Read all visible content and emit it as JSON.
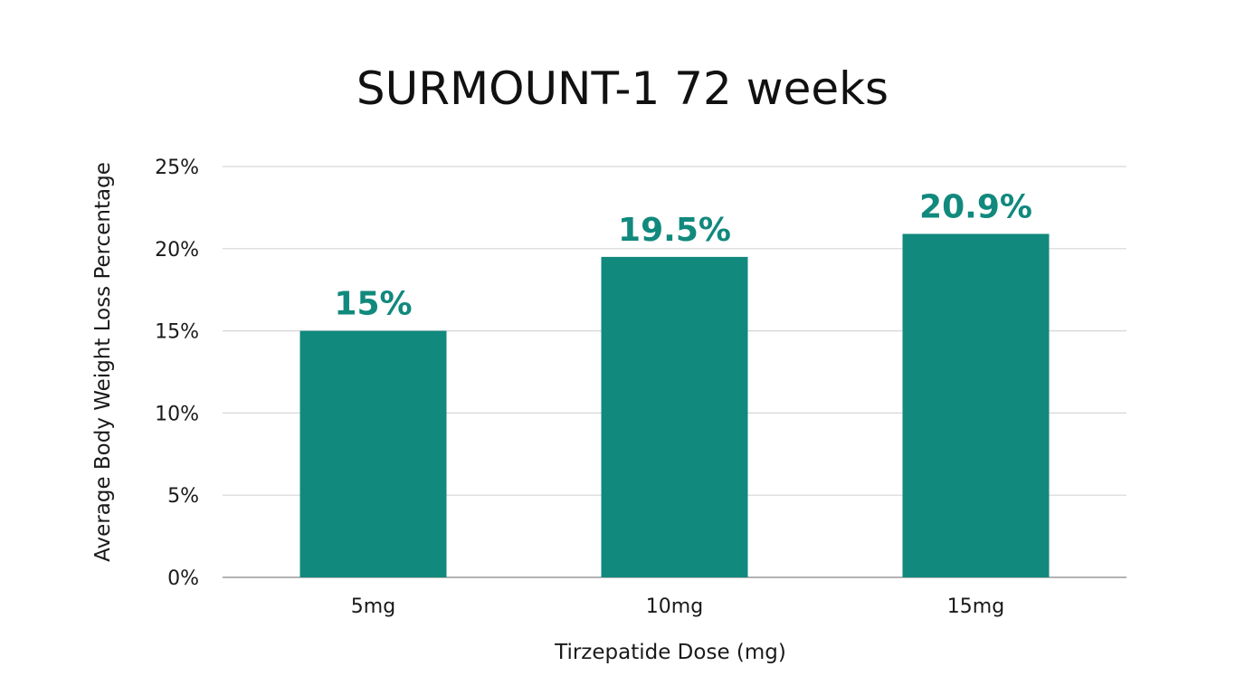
{
  "chart_data": {
    "type": "bar",
    "title": "SURMOUNT-1 72 weeks",
    "xlabel": "Tirzepatide Dose (mg)",
    "ylabel": "Average Body Weight Loss Percentage",
    "categories": [
      "5mg",
      "10mg",
      "15mg"
    ],
    "values": [
      15,
      19.5,
      20.9
    ],
    "data_labels": [
      "15%",
      "19.5%",
      "20.9%"
    ],
    "ylim": [
      0,
      25
    ],
    "yticks": [
      0,
      5,
      10,
      15,
      20,
      25
    ],
    "ytick_labels": [
      "0%",
      "5%",
      "10%",
      "15%",
      "20%",
      "25%"
    ],
    "grid": true,
    "legend": "none",
    "colors": {
      "bar": "#11897D",
      "label": "#11897D"
    }
  }
}
